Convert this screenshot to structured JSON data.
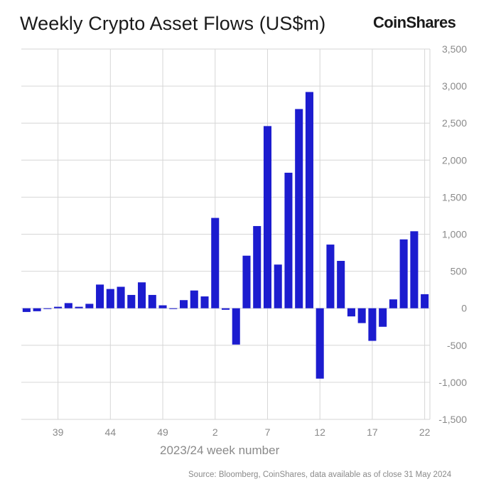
{
  "title": "Weekly Crypto Asset Flows (US$m)",
  "logo_text": "CoinShares",
  "source": "Source: Bloomberg, CoinShares, data available as of close 31 May 2024",
  "chart_data": {
    "type": "bar",
    "title": "Weekly Crypto Asset Flows (US$m)",
    "xlabel": "2023/24 week number",
    "ylabel": "",
    "ylim": [
      -1500,
      3500
    ],
    "yticks": [
      3500,
      3000,
      2500,
      2000,
      1500,
      1000,
      500,
      0,
      -500,
      -1000,
      -1500
    ],
    "ytick_labels": [
      "3,500",
      "3,000",
      "2,500",
      "2,000",
      "1,500",
      "1,000",
      "500",
      "0",
      "-500",
      "-1,000",
      "-1,500"
    ],
    "y_axis_side": "right",
    "xtick_labels": [
      "39",
      "44",
      "49",
      "2",
      "7",
      "12",
      "17",
      "22"
    ],
    "grid": true,
    "bar_color": "#1c1ccf",
    "categories": [
      "36",
      "37",
      "38",
      "39",
      "40",
      "41",
      "42",
      "43",
      "44",
      "45",
      "46",
      "47",
      "48",
      "49",
      "50",
      "51",
      "52",
      "1",
      "2",
      "3",
      "4",
      "5",
      "6",
      "7",
      "8",
      "9",
      "10",
      "11",
      "12",
      "13",
      "14",
      "15",
      "16",
      "17",
      "18",
      "19",
      "20",
      "21",
      "22"
    ],
    "values": [
      -50,
      -40,
      -10,
      20,
      70,
      20,
      60,
      320,
      260,
      290,
      180,
      350,
      180,
      40,
      -10,
      110,
      240,
      160,
      1220,
      -20,
      -490,
      710,
      1110,
      2460,
      590,
      1830,
      2690,
      2920,
      -950,
      860,
      640,
      -110,
      -200,
      -440,
      -250,
      120,
      930,
      1040,
      190
    ]
  }
}
